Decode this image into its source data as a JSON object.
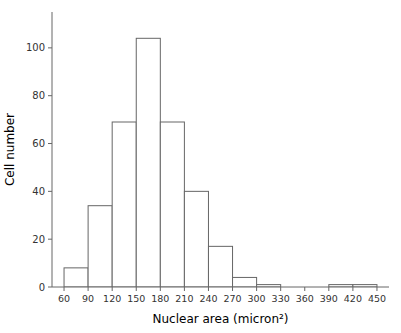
{
  "chart_data": {
    "type": "histogram",
    "bins": [
      60,
      90,
      120,
      150,
      180,
      210,
      240,
      270,
      300,
      330,
      360,
      390,
      420,
      450
    ],
    "values": [
      8,
      34,
      69,
      104,
      69,
      40,
      17,
      4,
      1,
      0,
      0,
      1,
      1
    ],
    "xlabel": "Nuclear area (micron²)",
    "ylabel": "Cell number",
    "xlim": [
      45,
      465
    ],
    "ylim": [
      0,
      115
    ],
    "xticks": [
      60,
      90,
      120,
      150,
      180,
      210,
      240,
      270,
      300,
      330,
      360,
      390,
      420,
      450
    ],
    "yticks": [
      0,
      20,
      40,
      60,
      80,
      100
    ],
    "color": "white"
  }
}
